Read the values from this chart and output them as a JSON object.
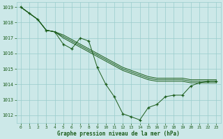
{
  "background_color": "#cce8e8",
  "grid_color": "#99cccc",
  "line_color": "#1a5c1a",
  "xlim": [
    -0.5,
    23.5
  ],
  "ylim": [
    1011.5,
    1019.3
  ],
  "yticks": [
    1012,
    1013,
    1014,
    1015,
    1016,
    1017,
    1018,
    1019
  ],
  "xticks": [
    0,
    1,
    2,
    3,
    4,
    5,
    6,
    7,
    8,
    9,
    10,
    11,
    12,
    13,
    14,
    15,
    16,
    17,
    18,
    19,
    20,
    21,
    22,
    23
  ],
  "xlabel": "Graphe pression niveau de la mer (hPa)",
  "series_with_markers": [
    1019.0,
    1018.6,
    1018.2,
    1017.5,
    1017.4,
    1016.6,
    1016.3,
    1017.0,
    1016.8,
    1015.1,
    1014.0,
    1013.2,
    1012.1,
    1011.9,
    1011.7,
    1012.5,
    1012.7,
    1013.2,
    1013.3,
    1013.3,
    1013.9,
    1014.1,
    1014.2,
    1014.2
  ],
  "smooth_lines": [
    [
      1019.0,
      1018.6,
      1018.2,
      1017.5,
      1017.4,
      1017.0,
      1016.7,
      1016.4,
      1016.1,
      1015.8,
      1015.5,
      1015.2,
      1014.9,
      1014.7,
      1014.5,
      1014.3,
      1014.2,
      1014.2,
      1014.2,
      1014.2,
      1014.1,
      1014.1,
      1014.1,
      1014.1
    ],
    [
      1019.0,
      1018.6,
      1018.2,
      1017.5,
      1017.4,
      1017.1,
      1016.8,
      1016.5,
      1016.2,
      1015.9,
      1015.6,
      1015.3,
      1015.0,
      1014.8,
      1014.6,
      1014.4,
      1014.3,
      1014.3,
      1014.3,
      1014.3,
      1014.2,
      1014.2,
      1014.2,
      1014.2
    ],
    [
      1019.0,
      1018.6,
      1018.2,
      1017.5,
      1017.4,
      1017.2,
      1016.9,
      1016.6,
      1016.3,
      1016.0,
      1015.7,
      1015.4,
      1015.1,
      1014.9,
      1014.7,
      1014.5,
      1014.4,
      1014.4,
      1014.4,
      1014.4,
      1014.3,
      1014.3,
      1014.3,
      1014.3
    ]
  ]
}
